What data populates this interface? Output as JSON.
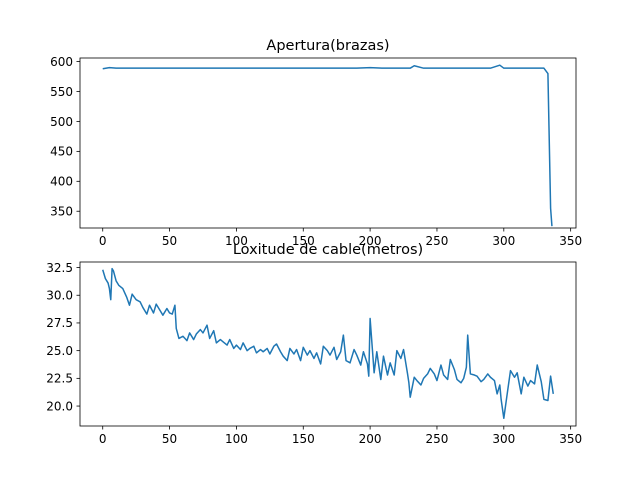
{
  "chart_data": [
    {
      "type": "line",
      "title": "Apertura(brazas)",
      "xlim": [
        -17,
        354
      ],
      "ylim": [
        322,
        606
      ],
      "xticks": [
        0,
        50,
        100,
        150,
        200,
        250,
        300,
        350
      ],
      "yticks": [
        350,
        400,
        450,
        500,
        550,
        600
      ],
      "series": [
        {
          "color": "#1f77b4",
          "x": [
            0,
            5,
            10,
            20,
            30,
            40,
            50,
            60,
            70,
            80,
            90,
            100,
            110,
            120,
            130,
            140,
            150,
            160,
            170,
            180,
            190,
            200,
            210,
            220,
            230,
            233,
            240,
            250,
            260,
            270,
            280,
            290,
            297,
            300,
            310,
            320,
            330,
            333,
            335,
            336
          ],
          "y": [
            588,
            590,
            589,
            589,
            589,
            589,
            589,
            589,
            589,
            589,
            589,
            589,
            589,
            589,
            589,
            589,
            589,
            589,
            589,
            589,
            589,
            590,
            589,
            589,
            589,
            593,
            589,
            589,
            589,
            589,
            589,
            589,
            594,
            589,
            589,
            589,
            589,
            580,
            355,
            325
          ]
        }
      ]
    },
    {
      "type": "line",
      "title": "Loxitude de cable(metros)",
      "xlim": [
        -17,
        354
      ],
      "ylim": [
        18.2,
        33.0
      ],
      "xticks": [
        0,
        50,
        100,
        150,
        200,
        250,
        300,
        350
      ],
      "yticks": [
        20.0,
        22.5,
        25.0,
        27.5,
        30.0,
        32.5
      ],
      "series": [
        {
          "color": "#1f77b4",
          "x": [
            0,
            2,
            4,
            5,
            6,
            7,
            8,
            10,
            12,
            15,
            18,
            20,
            22,
            25,
            28,
            30,
            33,
            35,
            38,
            40,
            43,
            45,
            48,
            50,
            52,
            54,
            55,
            57,
            60,
            63,
            65,
            68,
            70,
            73,
            75,
            78,
            80,
            83,
            85,
            88,
            90,
            93,
            95,
            98,
            100,
            103,
            105,
            108,
            110,
            113,
            115,
            118,
            120,
            123,
            125,
            128,
            130,
            133,
            135,
            138,
            140,
            143,
            145,
            148,
            150,
            153,
            155,
            158,
            160,
            163,
            165,
            168,
            170,
            173,
            175,
            178,
            180,
            182,
            185,
            188,
            190,
            193,
            195,
            198,
            199,
            200,
            203,
            205,
            208,
            210,
            213,
            215,
            218,
            220,
            223,
            225,
            228,
            229,
            230,
            233,
            235,
            238,
            240,
            243,
            245,
            248,
            250,
            253,
            255,
            258,
            260,
            263,
            265,
            268,
            270,
            272,
            273,
            275,
            278,
            280,
            283,
            285,
            288,
            290,
            293,
            295,
            297,
            298,
            300,
            303,
            305,
            308,
            310,
            313,
            315,
            318,
            320,
            323,
            325,
            328,
            330,
            333,
            335,
            337
          ],
          "y": [
            32.3,
            31.5,
            31.1,
            30.6,
            29.6,
            32.4,
            32.2,
            31.3,
            30.9,
            30.6,
            29.8,
            29.1,
            30.1,
            29.6,
            29.4,
            28.9,
            28.3,
            29.1,
            28.4,
            29.2,
            28.6,
            28.2,
            28.8,
            28.4,
            28.3,
            29.1,
            27.0,
            26.1,
            26.3,
            25.9,
            26.6,
            26.0,
            26.5,
            26.9,
            26.6,
            27.3,
            26.1,
            26.8,
            25.7,
            26.0,
            25.8,
            25.5,
            26.0,
            25.2,
            25.5,
            25.1,
            25.7,
            25.0,
            25.2,
            25.4,
            24.8,
            25.1,
            24.9,
            25.2,
            24.7,
            25.4,
            25.6,
            24.9,
            24.5,
            24.1,
            25.2,
            24.7,
            25.1,
            24.1,
            25.3,
            24.6,
            25.0,
            24.3,
            24.8,
            23.8,
            25.4,
            25.0,
            24.6,
            25.3,
            24.2,
            24.9,
            26.4,
            24.1,
            23.9,
            25.1,
            24.6,
            23.7,
            24.9,
            23.8,
            22.7,
            27.9,
            23.0,
            24.9,
            22.4,
            24.5,
            22.8,
            23.9,
            22.8,
            25.0,
            24.3,
            25.1,
            22.9,
            22.1,
            20.8,
            22.6,
            22.3,
            21.9,
            22.5,
            22.9,
            23.4,
            22.9,
            22.3,
            23.7,
            22.8,
            22.4,
            24.2,
            23.3,
            22.4,
            22.1,
            22.5,
            23.5,
            26.4,
            22.9,
            22.8,
            22.7,
            22.2,
            22.4,
            22.9,
            22.6,
            22.3,
            21.1,
            21.9,
            20.6,
            18.9,
            21.5,
            23.2,
            22.6,
            23.0,
            21.1,
            22.6,
            21.8,
            22.3,
            22.0,
            23.7,
            22.2,
            20.6,
            20.5,
            22.7,
            21.1
          ]
        }
      ]
    }
  ]
}
